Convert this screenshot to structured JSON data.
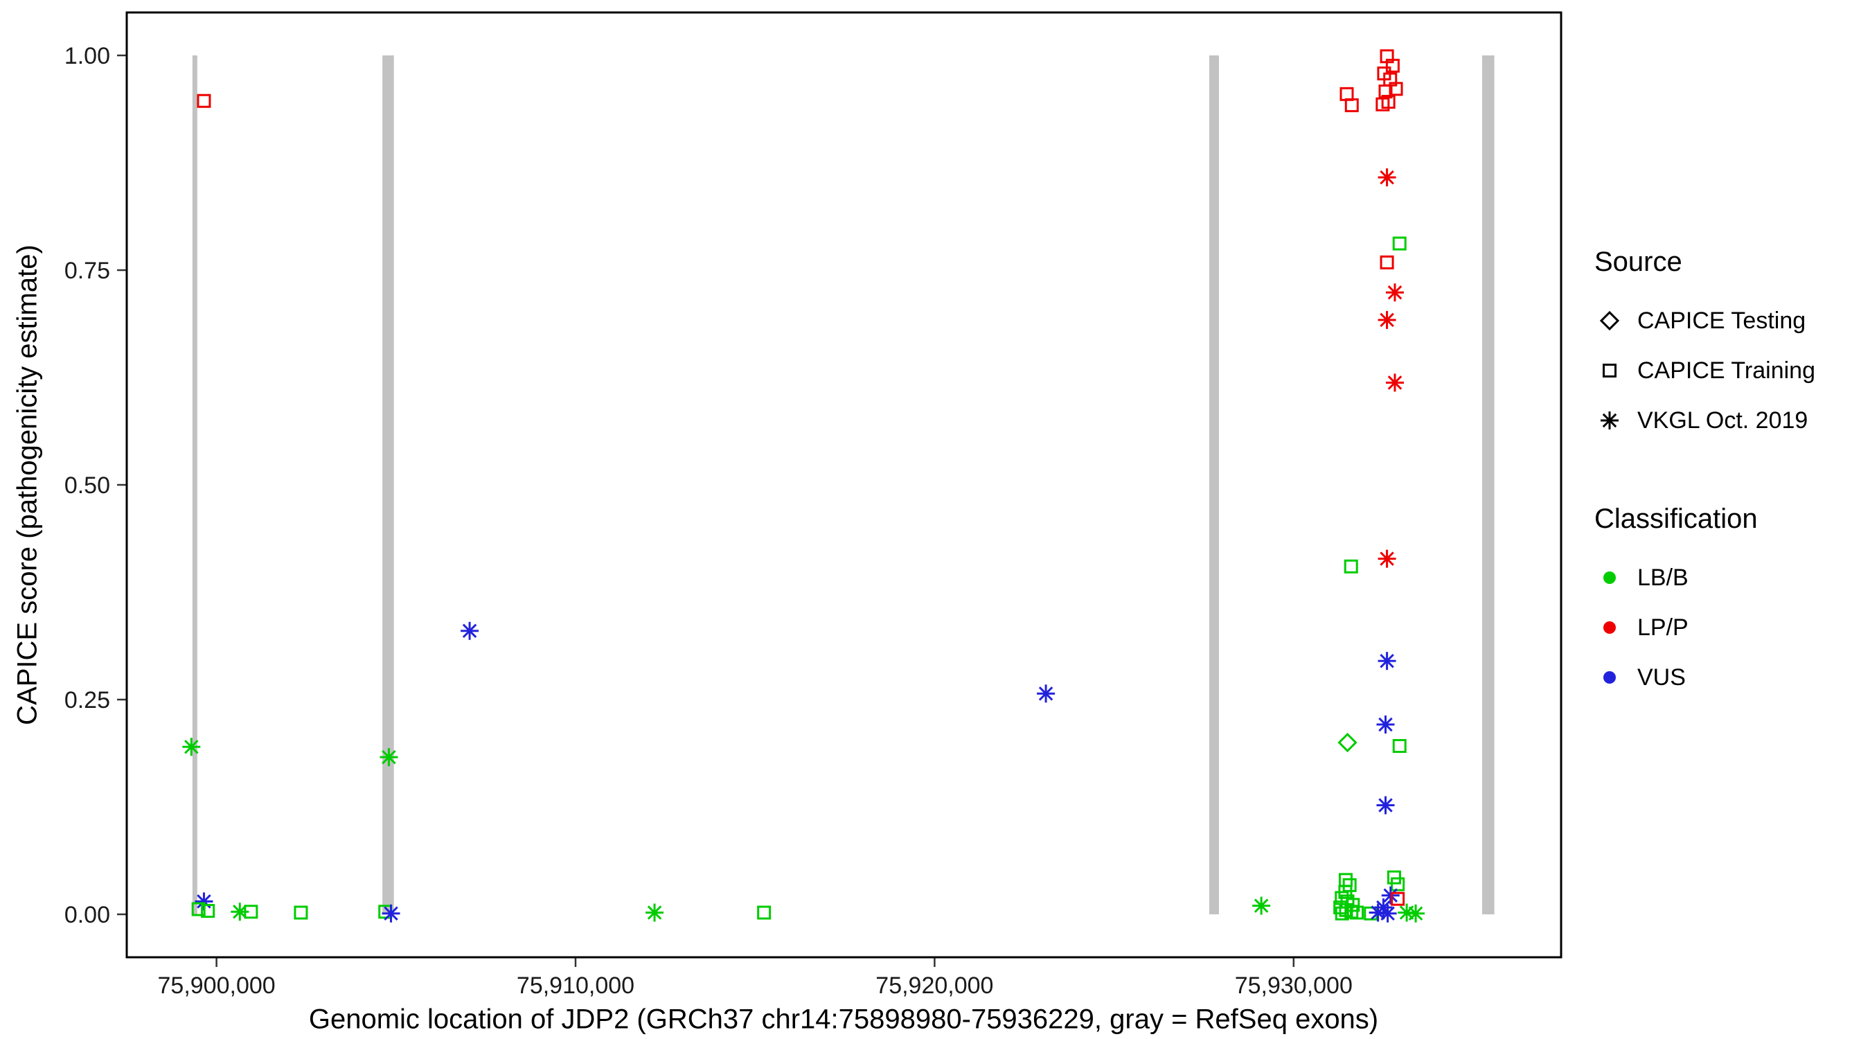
{
  "chart_data": {
    "type": "scatter",
    "title": "",
    "xlabel": "Genomic location of JDP2 (GRCh37 chr14:75898980-75936229, gray = RefSeq exons)",
    "ylabel": "CAPICE score (pathogenicity estimate)",
    "xlim": [
      75897500,
      75937450
    ],
    "ylim": [
      -0.05,
      1.05
    ],
    "grid": false,
    "x_ticks": [
      {
        "value": 75900000,
        "label": "75,900,000"
      },
      {
        "value": 75910000,
        "label": "75,910,000"
      },
      {
        "value": 75920000,
        "label": "75,920,000"
      },
      {
        "value": 75930000,
        "label": "75,930,000"
      }
    ],
    "y_ticks": [
      {
        "value": 0.0,
        "label": "0.00"
      },
      {
        "value": 0.25,
        "label": "0.25"
      },
      {
        "value": 0.5,
        "label": "0.50"
      },
      {
        "value": 0.75,
        "label": "0.75"
      },
      {
        "value": 1.0,
        "label": "1.00"
      }
    ],
    "exon_color": "#c2c2c2",
    "exons": [
      {
        "x_start": 75899330,
        "x_end": 75899465
      },
      {
        "x_start": 75904620,
        "x_end": 75904940
      },
      {
        "x_start": 75927650,
        "x_end": 75927920
      },
      {
        "x_start": 75935250,
        "x_end": 75935590
      }
    ],
    "classification_colors": {
      "LB/B": "#00cc00",
      "LP/P": "#ee0000",
      "VUS": "#2222dd"
    },
    "source_markers": {
      "CAPICE Testing": "diamond",
      "CAPICE Training": "square",
      "VKGL Oct. 2019": "asterisk"
    },
    "legend": {
      "source_title": "Source",
      "source_items": [
        {
          "label": "CAPICE Testing",
          "marker": "diamond"
        },
        {
          "label": "CAPICE Training",
          "marker": "square"
        },
        {
          "label": "VKGL Oct. 2019",
          "marker": "asterisk"
        }
      ],
      "classification_title": "Classification",
      "classification_items": [
        {
          "label": "LB/B",
          "color": "#00cc00"
        },
        {
          "label": "LP/P",
          "color": "#ee0000"
        },
        {
          "label": "VUS",
          "color": "#2222dd"
        }
      ]
    },
    "points": [
      {
        "x": 75899650,
        "y": 0.947,
        "source": "CAPICE Training",
        "classification": "LP/P"
      },
      {
        "x": 75899300,
        "y": 0.195,
        "source": "VKGL Oct. 2019",
        "classification": "LB/B"
      },
      {
        "x": 75899650,
        "y": 0.015,
        "source": "VKGL Oct. 2019",
        "classification": "VUS"
      },
      {
        "x": 75899500,
        "y": 0.006,
        "source": "CAPICE Training",
        "classification": "LB/B"
      },
      {
        "x": 75899760,
        "y": 0.004,
        "source": "CAPICE Training",
        "classification": "LB/B"
      },
      {
        "x": 75900650,
        "y": 0.003,
        "source": "VKGL Oct. 2019",
        "classification": "LB/B"
      },
      {
        "x": 75900960,
        "y": 0.003,
        "source": "CAPICE Training",
        "classification": "LB/B"
      },
      {
        "x": 75902350,
        "y": 0.002,
        "source": "CAPICE Training",
        "classification": "LB/B"
      },
      {
        "x": 75904800,
        "y": 0.183,
        "source": "VKGL Oct. 2019",
        "classification": "LB/B"
      },
      {
        "x": 75904700,
        "y": 0.003,
        "source": "CAPICE Training",
        "classification": "LB/B"
      },
      {
        "x": 75904860,
        "y": 0.001,
        "source": "VKGL Oct. 2019",
        "classification": "VUS"
      },
      {
        "x": 75907050,
        "y": 0.33,
        "source": "VKGL Oct. 2019",
        "classification": "VUS"
      },
      {
        "x": 75912200,
        "y": 0.002,
        "source": "VKGL Oct. 2019",
        "classification": "LB/B"
      },
      {
        "x": 75915250,
        "y": 0.002,
        "source": "CAPICE Training",
        "classification": "LB/B"
      },
      {
        "x": 75923100,
        "y": 0.257,
        "source": "VKGL Oct. 2019",
        "classification": "VUS"
      },
      {
        "x": 75929100,
        "y": 0.01,
        "source": "VKGL Oct. 2019",
        "classification": "LB/B"
      },
      {
        "x": 75931480,
        "y": 0.955,
        "source": "CAPICE Training",
        "classification": "LP/P"
      },
      {
        "x": 75931620,
        "y": 0.942,
        "source": "CAPICE Training",
        "classification": "LP/P"
      },
      {
        "x": 75932600,
        "y": 0.999,
        "source": "CAPICE Training",
        "classification": "LP/P"
      },
      {
        "x": 75932760,
        "y": 0.988,
        "source": "CAPICE Training",
        "classification": "LP/P"
      },
      {
        "x": 75932520,
        "y": 0.979,
        "source": "CAPICE Training",
        "classification": "LP/P"
      },
      {
        "x": 75932690,
        "y": 0.972,
        "source": "CAPICE Training",
        "classification": "LP/P"
      },
      {
        "x": 75932850,
        "y": 0.961,
        "source": "CAPICE Training",
        "classification": "LP/P"
      },
      {
        "x": 75932560,
        "y": 0.958,
        "source": "CAPICE Training",
        "classification": "LP/P"
      },
      {
        "x": 75932640,
        "y": 0.946,
        "source": "CAPICE Training",
        "classification": "LP/P"
      },
      {
        "x": 75932480,
        "y": 0.943,
        "source": "CAPICE Training",
        "classification": "LP/P"
      },
      {
        "x": 75932600,
        "y": 0.858,
        "source": "VKGL Oct. 2019",
        "classification": "LP/P"
      },
      {
        "x": 75932950,
        "y": 0.781,
        "source": "CAPICE Training",
        "classification": "LB/B"
      },
      {
        "x": 75932600,
        "y": 0.759,
        "source": "CAPICE Training",
        "classification": "LP/P"
      },
      {
        "x": 75932820,
        "y": 0.724,
        "source": "VKGL Oct. 2019",
        "classification": "LP/P"
      },
      {
        "x": 75932600,
        "y": 0.692,
        "source": "VKGL Oct. 2019",
        "classification": "LP/P"
      },
      {
        "x": 75932820,
        "y": 0.619,
        "source": "VKGL Oct. 2019",
        "classification": "LP/P"
      },
      {
        "x": 75932600,
        "y": 0.414,
        "source": "VKGL Oct. 2019",
        "classification": "LP/P"
      },
      {
        "x": 75931600,
        "y": 0.405,
        "source": "CAPICE Training",
        "classification": "LB/B"
      },
      {
        "x": 75932600,
        "y": 0.295,
        "source": "VKGL Oct. 2019",
        "classification": "VUS"
      },
      {
        "x": 75932560,
        "y": 0.221,
        "source": "VKGL Oct. 2019",
        "classification": "VUS"
      },
      {
        "x": 75931500,
        "y": 0.2,
        "source": "CAPICE Testing",
        "classification": "LB/B"
      },
      {
        "x": 75932950,
        "y": 0.196,
        "source": "CAPICE Training",
        "classification": "LB/B"
      },
      {
        "x": 75932560,
        "y": 0.127,
        "source": "VKGL Oct. 2019",
        "classification": "VUS"
      },
      {
        "x": 75931450,
        "y": 0.04,
        "source": "CAPICE Training",
        "classification": "LB/B"
      },
      {
        "x": 75931560,
        "y": 0.034,
        "source": "CAPICE Training",
        "classification": "LB/B"
      },
      {
        "x": 75932800,
        "y": 0.043,
        "source": "CAPICE Training",
        "classification": "LB/B"
      },
      {
        "x": 75932900,
        "y": 0.035,
        "source": "CAPICE Training",
        "classification": "LB/B"
      },
      {
        "x": 75931440,
        "y": 0.026,
        "source": "CAPICE Training",
        "classification": "LB/B"
      },
      {
        "x": 75931340,
        "y": 0.019,
        "source": "CAPICE Training",
        "classification": "LB/B"
      },
      {
        "x": 75931500,
        "y": 0.015,
        "source": "CAPICE Training",
        "classification": "LB/B"
      },
      {
        "x": 75931650,
        "y": 0.011,
        "source": "CAPICE Training",
        "classification": "LB/B"
      },
      {
        "x": 75931300,
        "y": 0.008,
        "source": "CAPICE Training",
        "classification": "LB/B"
      },
      {
        "x": 75931460,
        "y": 0.005,
        "source": "CAPICE Training",
        "classification": "LB/B"
      },
      {
        "x": 75931610,
        "y": 0.003,
        "source": "CAPICE Training",
        "classification": "LB/B"
      },
      {
        "x": 75931760,
        "y": 0.002,
        "source": "CAPICE Training",
        "classification": "LB/B"
      },
      {
        "x": 75931350,
        "y": 0.001,
        "source": "CAPICE Training",
        "classification": "LB/B"
      },
      {
        "x": 75932150,
        "y": 0.001,
        "source": "CAPICE Training",
        "classification": "LB/B"
      },
      {
        "x": 75932700,
        "y": 0.022,
        "source": "VKGL Oct. 2019",
        "classification": "VUS"
      },
      {
        "x": 75932900,
        "y": 0.018,
        "source": "CAPICE Training",
        "classification": "LP/P"
      },
      {
        "x": 75932500,
        "y": 0.008,
        "source": "VKGL Oct. 2019",
        "classification": "VUS"
      },
      {
        "x": 75932350,
        "y": 0.002,
        "source": "VKGL Oct. 2019",
        "classification": "VUS"
      },
      {
        "x": 75932620,
        "y": 0.001,
        "source": "VKGL Oct. 2019",
        "classification": "VUS"
      },
      {
        "x": 75933150,
        "y": 0.002,
        "source": "VKGL Oct. 2019",
        "classification": "LB/B"
      },
      {
        "x": 75933400,
        "y": 0.001,
        "source": "VKGL Oct. 2019",
        "classification": "LB/B"
      }
    ]
  }
}
